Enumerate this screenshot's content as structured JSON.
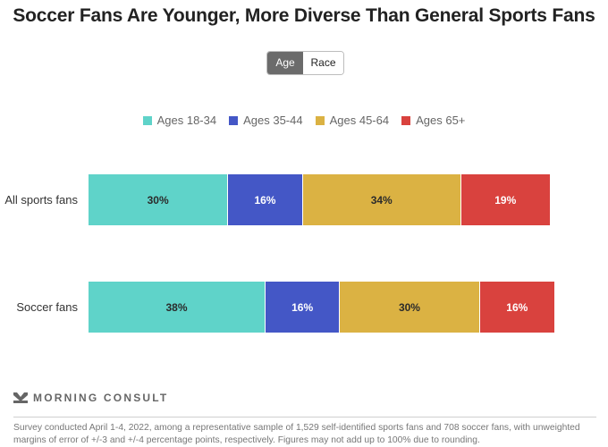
{
  "title": "Soccer Fans Are Younger, More Diverse Than General Sports Fans",
  "toggle": {
    "options": [
      {
        "label": "Age",
        "active": true
      },
      {
        "label": "Race",
        "active": false
      }
    ]
  },
  "colors": {
    "ages_18_34": "#5fd3c9",
    "ages_35_44": "#4457c6",
    "ages_45_64": "#dbb243",
    "ages_65_plus": "#d9423e",
    "label_dark": "#2b2b2b",
    "label_light": "#ffffff"
  },
  "chart_data": {
    "type": "bar",
    "orientation": "horizontal",
    "stacked": true,
    "title": "Soccer Fans Are Younger, More Diverse Than General Sports Fans",
    "categories": [
      "All sports fans",
      "Soccer fans"
    ],
    "series": [
      {
        "name": "Ages 18-34",
        "values": [
          30,
          38
        ],
        "labels": [
          "30%",
          "38%"
        ]
      },
      {
        "name": "Ages 35-44",
        "values": [
          16,
          16
        ],
        "labels": [
          "16%",
          "16%"
        ]
      },
      {
        "name": "Ages 45-64",
        "values": [
          34,
          30
        ],
        "labels": [
          "34%",
          "30%"
        ]
      },
      {
        "name": "Ages 65+",
        "values": [
          19,
          16
        ],
        "labels": [
          "19%",
          "16%"
        ]
      }
    ],
    "xlim": [
      0,
      100
    ],
    "unit": "%",
    "grid": false,
    "legend": "top-center"
  },
  "brand": {
    "name": "MORNING CONSULT",
    "icon": "morning-consult-logo-icon"
  },
  "footnote": "Survey conducted April 1-4, 2022, among a representative sample of 1,529 self-identified sports fans and 708 soccer fans, with unweighted margins of error of +/-3 and +/-4 percentage points, respectively. Figures may not add up to 100% due to rounding."
}
